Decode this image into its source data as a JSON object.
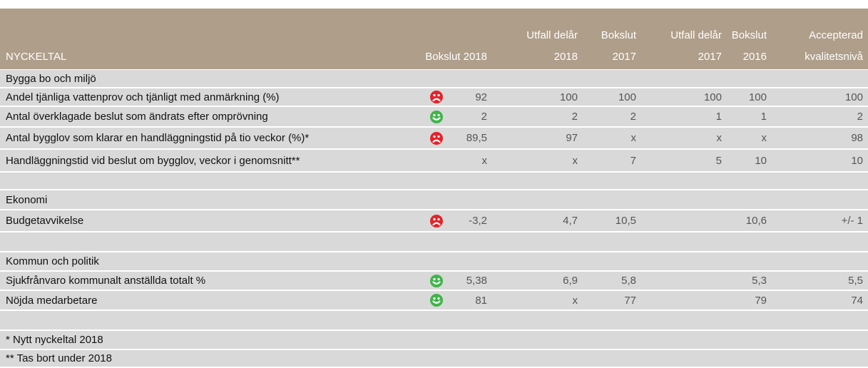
{
  "header": {
    "columns": [
      [
        "NYCKELTAL"
      ],
      [
        "Bokslut 2018"
      ],
      [
        "Utfall delår",
        "2018"
      ],
      [
        "Bokslut",
        "2017"
      ],
      [
        "Utfall delår",
        "2017"
      ],
      [
        "Bokslut",
        "2016"
      ],
      [
        "Accepterad",
        "kvalitetsnivå"
      ]
    ]
  },
  "rows": [
    {
      "label": "Bygga bo och miljö"
    },
    {
      "label": "Andel tjänliga vattenprov och tjänligt med anmärkning (%)",
      "status": "sad",
      "cells": [
        "92",
        "100",
        "100",
        "100",
        "100",
        "100"
      ]
    },
    {
      "label": "Antal överklagade beslut som ändrats efter omprövning",
      "status": "happy",
      "cells": [
        "2",
        "2",
        "2",
        "1",
        "1",
        "2"
      ]
    },
    {
      "label": "Antal bygglov som klarar en handläggningstid på tio veckor (%)*",
      "status": "sad",
      "cells": [
        "89,5",
        "97",
        "x",
        "x",
        "x",
        "98"
      ]
    },
    {
      "label": "Handläggningstid vid beslut om bygglov, veckor i genomsnitt**",
      "cells": [
        "x",
        "x",
        "7",
        "5",
        "10",
        "10"
      ]
    },
    {},
    {
      "label": "Ekonomi"
    },
    {
      "label": "Budgetavvikelse",
      "status": "sad",
      "cells": [
        "-3,2",
        "4,7",
        "10,5",
        "",
        "10,6",
        "+/- 1"
      ]
    },
    {},
    {
      "label": "Kommun och politik"
    },
    {
      "label": "Sjukfrånvaro kommunalt anställda totalt %",
      "status": "happy",
      "cells": [
        "5,38",
        "6,9",
        "5,8",
        "",
        "5,3",
        "5,5"
      ]
    },
    {
      "label": "Nöjda medarbetare",
      "status": "happy",
      "cells": [
        "81",
        "x",
        "77",
        "",
        "79",
        "74"
      ]
    },
    {},
    {
      "label": "* Nytt nyckeltal 2018"
    },
    {
      "label": "** Tas bort under 2018"
    }
  ]
}
